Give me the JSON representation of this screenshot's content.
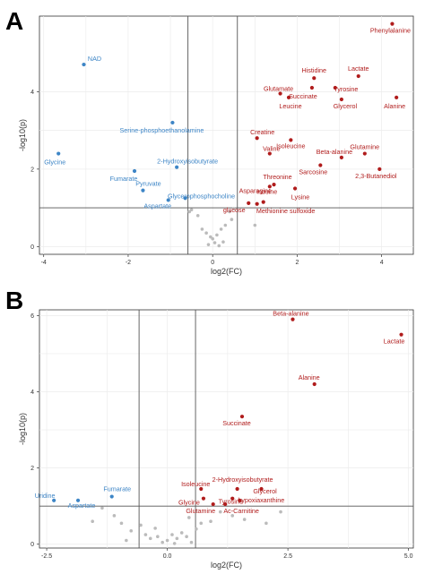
{
  "colors": {
    "up": "#b01c1c",
    "down": "#3d85c6",
    "ns": "#bbbbbb",
    "frame": "#333333",
    "grid": "#ececec",
    "threshold": "#555555",
    "axis_text": "#333333"
  },
  "chart_data": [
    {
      "panel": "A",
      "type": "scatter",
      "xlabel": "log2(FC)",
      "ylabel": "-log10(p)",
      "xlim": [
        -4.1,
        4.75
      ],
      "ylim": [
        -0.2,
        5.95
      ],
      "xticks": [
        -4,
        -2,
        0,
        2,
        4
      ],
      "yticks": [
        0,
        2,
        4
      ],
      "thresholds": {
        "x": [
          -0.585,
          0.585
        ],
        "y": 1.0
      },
      "grid": true,
      "labeled_points": [
        {
          "label": "Phenylalanine",
          "x": 4.25,
          "y": 5.75,
          "group": "up",
          "label_dx": -2,
          "label_dy": 10,
          "anchor": "middle"
        },
        {
          "label": "Histidine",
          "x": 2.4,
          "y": 4.35,
          "group": "up",
          "label_dx": 0,
          "label_dy": -6,
          "anchor": "middle"
        },
        {
          "label": "Lactate",
          "x": 3.45,
          "y": 4.4,
          "group": "up",
          "label_dx": 0,
          "label_dy": -6,
          "anchor": "middle"
        },
        {
          "label": "Glutamate",
          "x": 1.6,
          "y": 3.95,
          "group": "up",
          "label_dx": -2,
          "label_dy": -3,
          "anchor": "middle"
        },
        {
          "label": "Succinate",
          "x": 2.35,
          "y": 4.1,
          "group": "up",
          "label_dx": -10,
          "label_dy": 12,
          "anchor": "middle"
        },
        {
          "label": "Tyrosine",
          "x": 2.9,
          "y": 4.1,
          "group": "up",
          "label_dx": 12,
          "label_dy": 4,
          "anchor": "middle"
        },
        {
          "label": "Leucine",
          "x": 1.8,
          "y": 3.85,
          "group": "up",
          "label_dx": 2,
          "label_dy": 12,
          "anchor": "middle"
        },
        {
          "label": "Glycerol",
          "x": 3.05,
          "y": 3.8,
          "group": "up",
          "label_dx": 4,
          "label_dy": 10,
          "anchor": "middle"
        },
        {
          "label": "Alanine",
          "x": 4.35,
          "y": 3.85,
          "group": "up",
          "label_dx": -2,
          "label_dy": 12,
          "anchor": "middle"
        },
        {
          "label": "Creatine",
          "x": 1.05,
          "y": 2.8,
          "group": "up",
          "label_dx": 6,
          "label_dy": -4,
          "anchor": "middle"
        },
        {
          "label": "Isoleucine",
          "x": 1.85,
          "y": 2.75,
          "group": "up",
          "label_dx": 0,
          "label_dy": 9,
          "anchor": "middle"
        },
        {
          "label": "Valine",
          "x": 1.35,
          "y": 2.4,
          "group": "up",
          "label_dx": 2,
          "label_dy": -3,
          "anchor": "middle"
        },
        {
          "label": "Beta-alanine",
          "x": 3.05,
          "y": 2.3,
          "group": "up",
          "label_dx": -8,
          "label_dy": -4,
          "anchor": "middle"
        },
        {
          "label": "Glutamine",
          "x": 3.6,
          "y": 2.4,
          "group": "up",
          "label_dx": 0,
          "label_dy": -5,
          "anchor": "middle"
        },
        {
          "label": "Sarcosine",
          "x": 2.55,
          "y": 2.1,
          "group": "up",
          "label_dx": -8,
          "label_dy": 10,
          "anchor": "middle"
        },
        {
          "label": "2,3-Butanediol",
          "x": 3.95,
          "y": 2.0,
          "group": "up",
          "label_dx": -4,
          "label_dy": 10,
          "anchor": "middle"
        },
        {
          "label": "Threonine",
          "x": 1.45,
          "y": 1.6,
          "group": "up",
          "label_dx": 4,
          "label_dy": -6,
          "anchor": "middle"
        },
        {
          "label": "Asparagine",
          "x": 1.35,
          "y": 1.55,
          "group": "up",
          "label_dx": -16,
          "label_dy": 7,
          "anchor": "middle"
        },
        {
          "label": "Lysine",
          "x": 1.95,
          "y": 1.5,
          "group": "up",
          "label_dx": 6,
          "label_dy": 12,
          "anchor": "middle"
        },
        {
          "label": "Inosine",
          "x": 1.2,
          "y": 1.15,
          "group": "up",
          "label_dx": 4,
          "label_dy": -9,
          "anchor": "middle"
        },
        {
          "label": "glucose",
          "x": 0.85,
          "y": 1.12,
          "group": "up",
          "label_dx": -16,
          "label_dy": 10,
          "anchor": "middle"
        },
        {
          "label": "Methionine sulfoxide",
          "x": 1.05,
          "y": 1.1,
          "group": "up",
          "label_dx": 32,
          "label_dy": 10,
          "anchor": "middle"
        },
        {
          "label": "NAD",
          "x": -3.05,
          "y": 4.7,
          "group": "down",
          "label_dx": 12,
          "label_dy": -4,
          "anchor": "middle"
        },
        {
          "label": "Serine-phosphoethanolamine",
          "x": -0.95,
          "y": 3.2,
          "group": "down",
          "label_dx": -12,
          "label_dy": 11,
          "anchor": "middle"
        },
        {
          "label": "Glycine",
          "x": -3.65,
          "y": 2.4,
          "group": "down",
          "label_dx": -4,
          "label_dy": 12,
          "anchor": "middle"
        },
        {
          "label": "2-Hydroxyisobutyrate",
          "x": -0.85,
          "y": 2.05,
          "group": "down",
          "label_dx": 12,
          "label_dy": -4,
          "anchor": "middle"
        },
        {
          "label": "Fumarate",
          "x": -1.85,
          "y": 1.95,
          "group": "down",
          "label_dx": -12,
          "label_dy": 11,
          "anchor": "middle"
        },
        {
          "label": "Pyruvate",
          "x": -1.65,
          "y": 1.45,
          "group": "down",
          "label_dx": 6,
          "label_dy": -5,
          "anchor": "middle"
        },
        {
          "label": "Glycerophosphocholine",
          "x": -0.65,
          "y": 1.25,
          "group": "down",
          "label_dx": 18,
          "label_dy": 0,
          "anchor": "middle"
        },
        {
          "label": "Aspartate",
          "x": -1.05,
          "y": 1.2,
          "group": "down",
          "label_dx": -12,
          "label_dy": 9,
          "anchor": "middle"
        }
      ],
      "ns_points": [
        [
          -0.5,
          0.95
        ],
        [
          -0.35,
          0.8
        ],
        [
          -0.25,
          0.45
        ],
        [
          -0.15,
          0.35
        ],
        [
          0.0,
          0.2
        ],
        [
          0.05,
          0.1
        ],
        [
          0.1,
          0.3
        ],
        [
          0.2,
          0.45
        ],
        [
          0.3,
          0.55
        ],
        [
          0.4,
          0.9
        ],
        [
          -0.1,
          0.05
        ],
        [
          0.15,
          0.02
        ],
        [
          0.45,
          0.7
        ],
        [
          0.5,
          0.98
        ],
        [
          1.0,
          0.55
        ],
        [
          -0.55,
          0.9
        ],
        [
          0.25,
          0.12
        ],
        [
          -0.05,
          0.25
        ]
      ]
    },
    {
      "panel": "B",
      "type": "scatter",
      "xlabel": "log2(FC)",
      "ylabel": "-log10(p)",
      "xlim": [
        -2.65,
        5.1
      ],
      "ylim": [
        -0.1,
        6.15
      ],
      "xticks": [
        -2.5,
        0.0,
        2.5,
        5.0
      ],
      "xtick_labels": [
        "-2.5",
        "0.0",
        "2.5",
        "5.0"
      ],
      "yticks": [
        0,
        2,
        4,
        6
      ],
      "thresholds": {
        "x": [
          -0.585,
          0.585
        ],
        "y": 1.0
      },
      "grid": true,
      "labeled_points": [
        {
          "label": "Beta-alanine",
          "x": 2.6,
          "y": 5.9,
          "group": "up",
          "label_dx": -2,
          "label_dy": -4,
          "anchor": "middle"
        },
        {
          "label": "Lactate",
          "x": 4.85,
          "y": 5.5,
          "group": "up",
          "label_dx": -8,
          "label_dy": 10,
          "anchor": "middle"
        },
        {
          "label": "Alanine",
          "x": 3.05,
          "y": 4.2,
          "group": "up",
          "label_dx": -6,
          "label_dy": -5,
          "anchor": "middle"
        },
        {
          "label": "Succinate",
          "x": 1.55,
          "y": 3.35,
          "group": "up",
          "label_dx": -6,
          "label_dy": 10,
          "anchor": "middle"
        },
        {
          "label": "2-Hydroxyisobutyrate",
          "x": 1.45,
          "y": 1.45,
          "group": "up",
          "label_dx": 6,
          "label_dy": -8,
          "anchor": "middle"
        },
        {
          "label": "Isoleucine",
          "x": 0.7,
          "y": 1.45,
          "group": "up",
          "label_dx": -6,
          "label_dy": -3,
          "anchor": "middle"
        },
        {
          "label": "Glycerol",
          "x": 1.95,
          "y": 1.45,
          "group": "up",
          "label_dx": 4,
          "label_dy": 5,
          "anchor": "middle"
        },
        {
          "label": "Glycine",
          "x": 0.75,
          "y": 1.2,
          "group": "up",
          "label_dx": -16,
          "label_dy": 7,
          "anchor": "middle"
        },
        {
          "label": "Tyrosine",
          "x": 1.35,
          "y": 1.2,
          "group": "up",
          "label_dx": -2,
          "label_dy": 6,
          "anchor": "middle"
        },
        {
          "label": "hypoxiaxanthine",
          "x": 1.5,
          "y": 1.15,
          "group": "up",
          "label_dx": 24,
          "label_dy": 2,
          "anchor": "middle"
        },
        {
          "label": "Glutamine",
          "x": 0.95,
          "y": 1.05,
          "group": "up",
          "label_dx": -14,
          "label_dy": 10,
          "anchor": "middle"
        },
        {
          "label": "Ac-Carnitine",
          "x": 1.2,
          "y": 1.05,
          "group": "up",
          "label_dx": 18,
          "label_dy": 10,
          "anchor": "middle"
        },
        {
          "label": "Fumarate",
          "x": -1.15,
          "y": 1.25,
          "group": "down",
          "label_dx": 6,
          "label_dy": -6,
          "anchor": "middle"
        },
        {
          "label": "Uridine",
          "x": -2.35,
          "y": 1.15,
          "group": "down",
          "label_dx": -10,
          "label_dy": -3,
          "anchor": "middle"
        },
        {
          "label": "Aspartate",
          "x": -1.85,
          "y": 1.15,
          "group": "down",
          "label_dx": 4,
          "label_dy": 8,
          "anchor": "middle"
        }
      ],
      "ns_points": [
        [
          -1.35,
          0.95
        ],
        [
          -1.1,
          0.75
        ],
        [
          -0.95,
          0.55
        ],
        [
          -0.75,
          0.35
        ],
        [
          -0.55,
          0.5
        ],
        [
          -0.45,
          0.25
        ],
        [
          -0.35,
          0.15
        ],
        [
          -0.2,
          0.2
        ],
        [
          -0.1,
          0.05
        ],
        [
          0.0,
          0.1
        ],
        [
          0.1,
          0.25
        ],
        [
          0.2,
          0.15
        ],
        [
          0.3,
          0.3
        ],
        [
          0.4,
          0.2
        ],
        [
          0.5,
          0.05
        ],
        [
          0.6,
          0.4
        ],
        [
          0.7,
          0.55
        ],
        [
          0.9,
          0.6
        ],
        [
          1.1,
          0.85
        ],
        [
          1.35,
          0.75
        ],
        [
          1.6,
          0.65
        ],
        [
          2.05,
          0.55
        ],
        [
          2.35,
          0.85
        ],
        [
          -1.55,
          0.6
        ],
        [
          -0.85,
          0.1
        ],
        [
          0.45,
          0.7
        ],
        [
          -0.25,
          0.42
        ],
        [
          0.15,
          0.02
        ]
      ]
    }
  ],
  "panels": {
    "A": {
      "letter": "A"
    },
    "B": {
      "letter": "B"
    }
  }
}
